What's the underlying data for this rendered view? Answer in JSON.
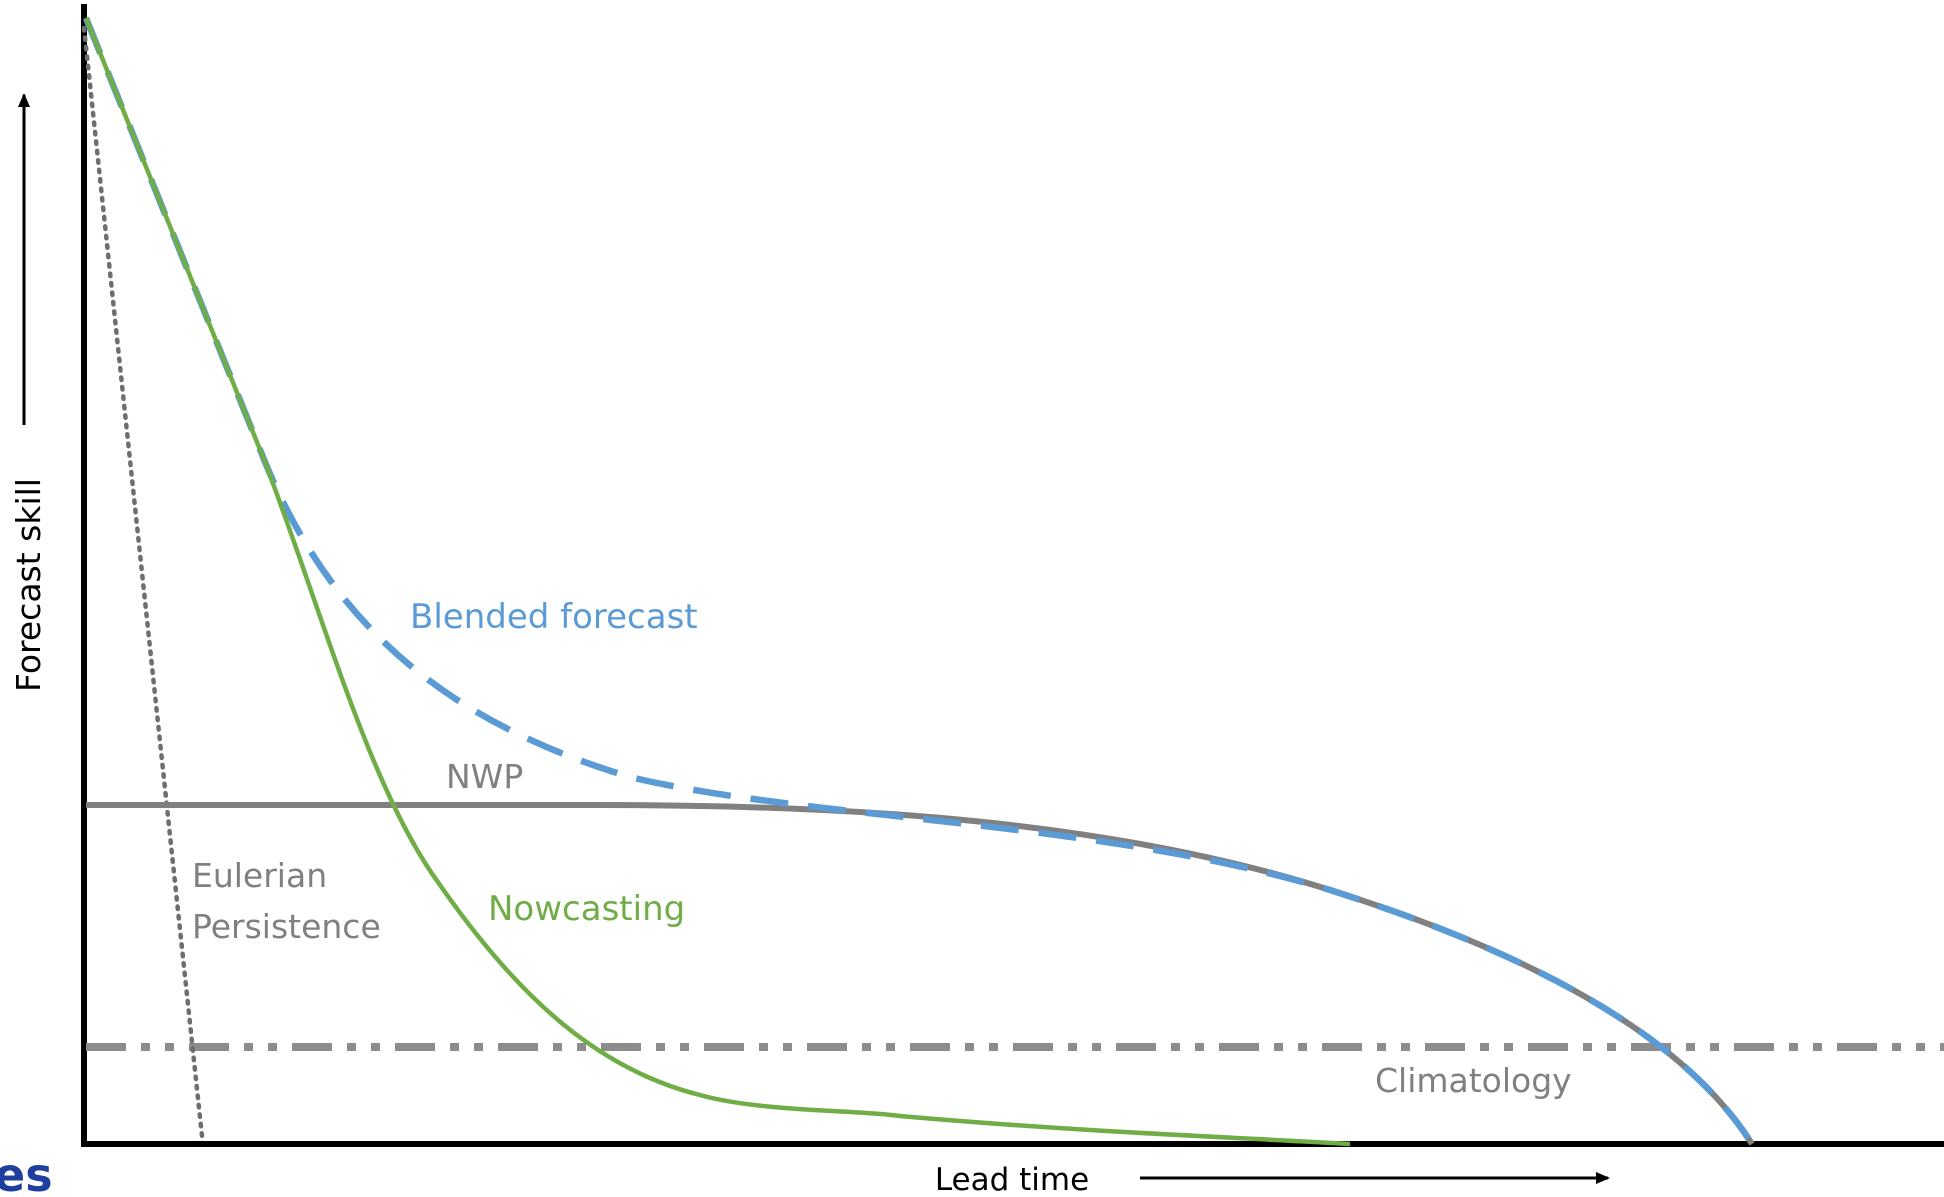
{
  "chart_data": {
    "type": "line",
    "title": "",
    "xlabel": "Lead time",
    "ylabel": "Forecast skill",
    "series": [
      {
        "name": "Blended forecast",
        "color": "#5b9bd5",
        "style": "dashed"
      },
      {
        "name": "NWP",
        "color": "#808080",
        "style": "solid"
      },
      {
        "name": "Nowcasting",
        "color": "#70ad47",
        "style": "solid"
      },
      {
        "name": "Eulerian Persistence",
        "color": "#808080",
        "style": "dotted"
      },
      {
        "name": "Climatology",
        "color": "#808080",
        "style": "dash-dot-dot"
      }
    ],
    "annotations": {
      "blended": "Blended forecast",
      "nwp": "NWP",
      "nowcasting": "Nowcasting",
      "eulerian_1": "Eulerian",
      "eulerian_2": "Persistence",
      "climatology": "Climatology"
    },
    "grid": false,
    "legend": "none"
  },
  "corner_text": "es",
  "colors": {
    "axis": "#000000",
    "blend": "#5b9bd5",
    "nwp": "#808080",
    "now": "#70ad47",
    "corner": "#1f3f9f"
  }
}
